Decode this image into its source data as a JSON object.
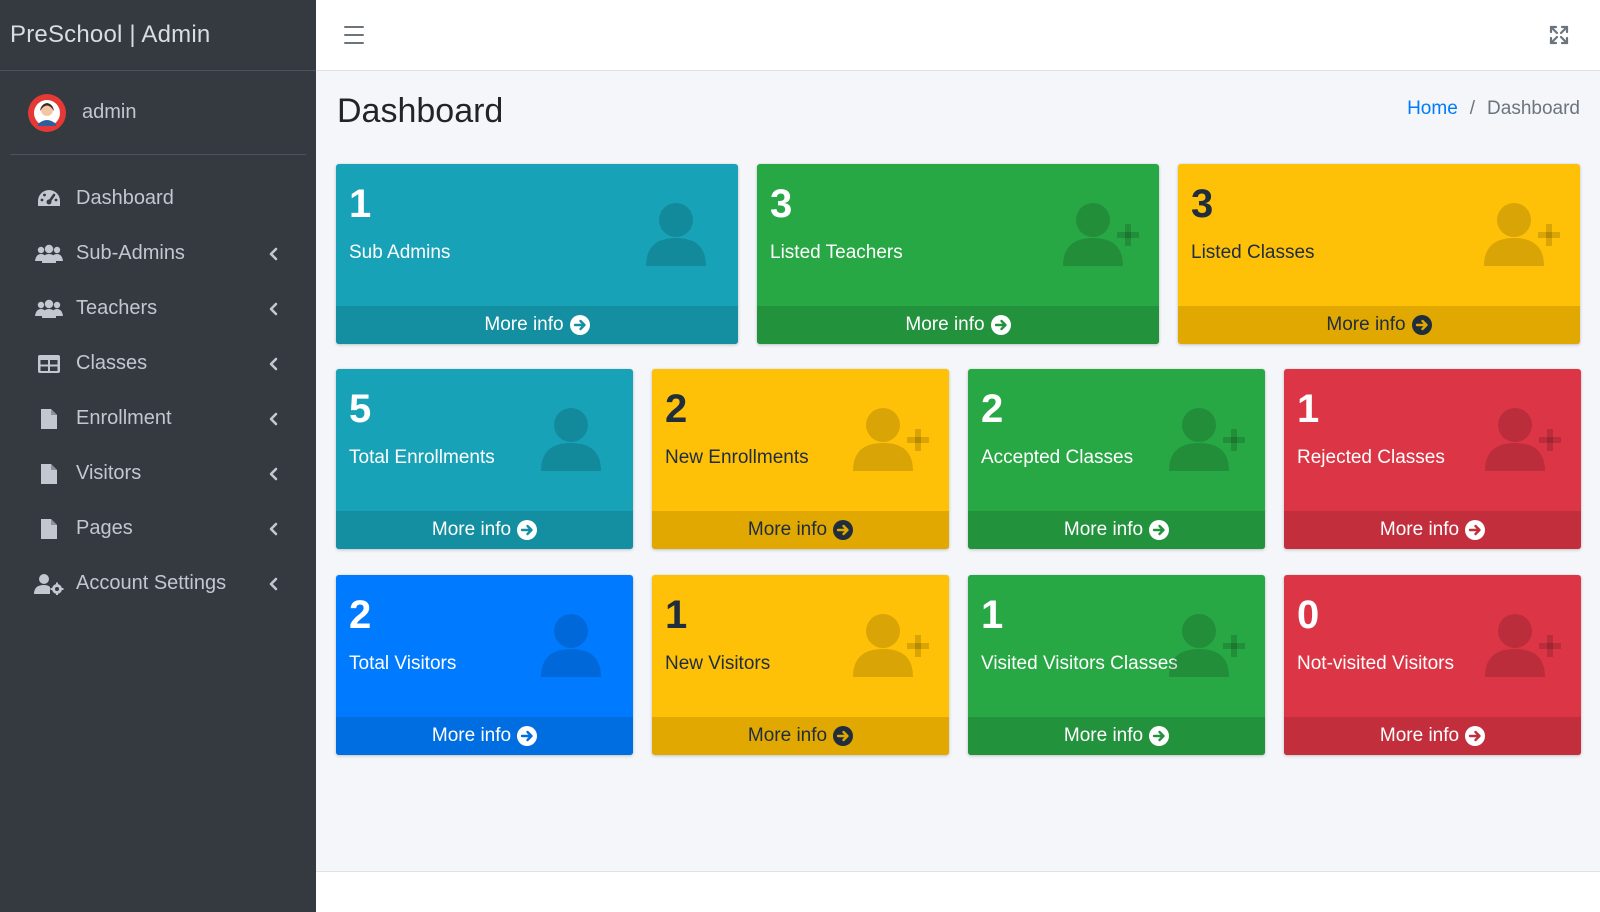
{
  "brand": {
    "title": "PreSchool | Admin"
  },
  "user": {
    "name": "admin"
  },
  "sidebar": {
    "items": [
      {
        "label": "Dashboard",
        "icon": "tachometer-icon",
        "expandable": false
      },
      {
        "label": "Sub-Admins",
        "icon": "users-icon",
        "expandable": true
      },
      {
        "label": "Teachers",
        "icon": "users-icon",
        "expandable": true
      },
      {
        "label": "Classes",
        "icon": "table-icon",
        "expandable": true
      },
      {
        "label": "Enrollment",
        "icon": "file-icon",
        "expandable": true
      },
      {
        "label": "Visitors",
        "icon": "file-icon",
        "expandable": true
      },
      {
        "label": "Pages",
        "icon": "file-icon",
        "expandable": true
      },
      {
        "label": "Account Settings",
        "icon": "user-cog-icon",
        "expandable": true
      }
    ]
  },
  "page": {
    "title": "Dashboard"
  },
  "breadcrumb": {
    "home": "Home",
    "separator": "/",
    "current": "Dashboard"
  },
  "boxes": [
    {
      "count": "1",
      "label": "Sub Admins",
      "color": "info",
      "icon": "user-icon",
      "more": "More info"
    },
    {
      "count": "3",
      "label": "Listed Teachers",
      "color": "success",
      "icon": "user-plus-icon",
      "more": "More info"
    },
    {
      "count": "3",
      "label": "Listed Classes",
      "color": "warning",
      "icon": "user-plus-icon",
      "more": "More info"
    },
    {
      "count": "5",
      "label": "Total Enrollments",
      "color": "info",
      "icon": "user-icon",
      "more": "More info"
    },
    {
      "count": "2",
      "label": "New Enrollments",
      "color": "warning",
      "icon": "user-plus-icon",
      "more": "More info"
    },
    {
      "count": "2",
      "label": "Accepted Classes",
      "color": "success",
      "icon": "user-plus-icon",
      "more": "More info"
    },
    {
      "count": "1",
      "label": "Rejected Classes",
      "color": "danger",
      "icon": "user-plus-icon",
      "more": "More info"
    },
    {
      "count": "2",
      "label": "Total Visitors",
      "color": "primary",
      "icon": "user-icon",
      "more": "More info"
    },
    {
      "count": "1",
      "label": "New Visitors",
      "color": "warning",
      "icon": "user-plus-icon",
      "more": "More info"
    },
    {
      "count": "1",
      "label": "Visited Visitors Classes",
      "color": "success",
      "icon": "user-plus-icon",
      "more": "More info"
    },
    {
      "count": "0",
      "label": "Not-visited Visitors",
      "color": "danger",
      "icon": "user-plus-icon",
      "more": "More info"
    }
  ],
  "colors": {
    "sidebar": "#343a40",
    "info": "#17a2b8",
    "success": "#28a745",
    "warning": "#ffc107",
    "danger": "#dc3545",
    "primary": "#007bff"
  }
}
